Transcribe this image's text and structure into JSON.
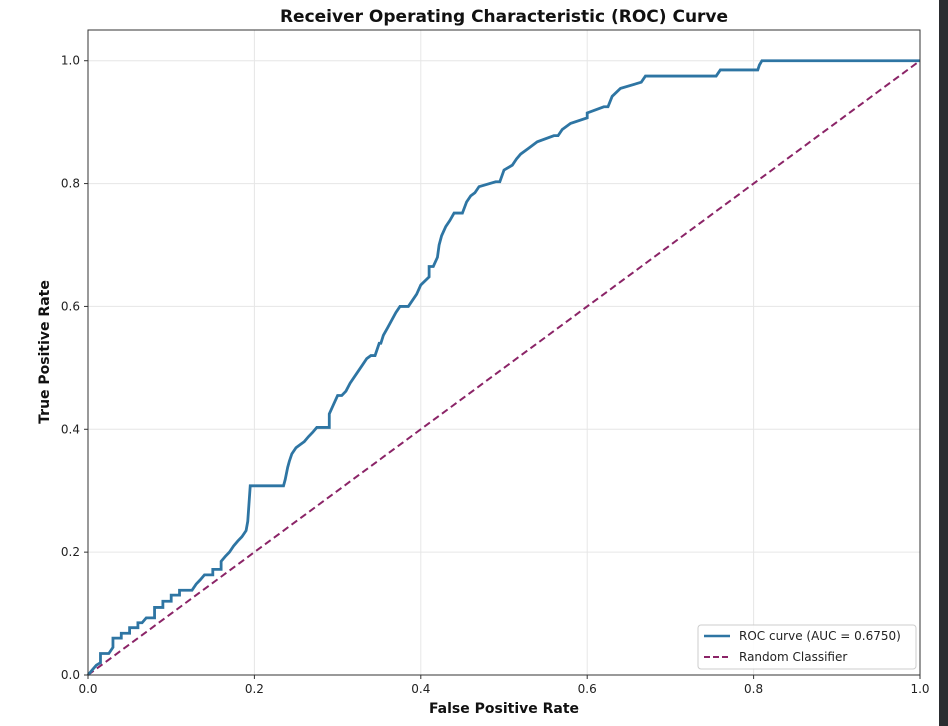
{
  "chart_data": {
    "type": "line",
    "title": "Receiver Operating Characteristic (ROC) Curve",
    "xlabel": "False Positive Rate",
    "ylabel": "True Positive Rate",
    "xlim": [
      0,
      1
    ],
    "ylim": [
      0,
      1.05
    ],
    "xticks": [
      0.0,
      0.2,
      0.4,
      0.6,
      0.8,
      1.0
    ],
    "yticks": [
      0.0,
      0.2,
      0.4,
      0.6,
      0.8,
      1.0
    ],
    "xtick_labels": [
      "0.0",
      "0.2",
      "0.4",
      "0.6",
      "0.8",
      "1.0"
    ],
    "ytick_labels": [
      "0.0",
      "0.2",
      "0.4",
      "0.6",
      "0.8",
      "1.0"
    ],
    "grid": true,
    "legend_position": "bottom-right",
    "series": [
      {
        "name": "ROC curve (AUC = 0.6750)",
        "color": "#2e75a3",
        "style": "solid",
        "x": [
          0,
          0.005,
          0.01,
          0.015,
          0.015,
          0.025,
          0.03,
          0.03,
          0.04,
          0.04,
          0.05,
          0.05,
          0.06,
          0.06,
          0.065,
          0.07,
          0.08,
          0.08,
          0.09,
          0.09,
          0.1,
          0.1,
          0.11,
          0.11,
          0.125,
          0.13,
          0.135,
          0.14,
          0.15,
          0.15,
          0.16,
          0.16,
          0.165,
          0.17,
          0.175,
          0.18,
          0.185,
          0.19,
          0.192,
          0.195,
          0.235,
          0.237,
          0.24,
          0.242,
          0.245,
          0.25,
          0.255,
          0.26,
          0.265,
          0.27,
          0.275,
          0.28,
          0.29,
          0.29,
          0.295,
          0.3,
          0.305,
          0.31,
          0.315,
          0.32,
          0.325,
          0.33,
          0.335,
          0.34,
          0.345,
          0.35,
          0.352,
          0.355,
          0.36,
          0.37,
          0.375,
          0.38,
          0.385,
          0.39,
          0.395,
          0.4,
          0.41,
          0.41,
          0.415,
          0.42,
          0.422,
          0.425,
          0.43,
          0.435,
          0.44,
          0.45,
          0.455,
          0.46,
          0.465,
          0.47,
          0.49,
          0.495,
          0.5,
          0.51,
          0.515,
          0.52,
          0.53,
          0.54,
          0.56,
          0.565,
          0.57,
          0.58,
          0.6,
          0.6,
          0.62,
          0.625,
          0.63,
          0.64,
          0.665,
          0.67,
          0.755,
          0.76,
          0.805,
          0.807,
          0.81,
          1.0
        ],
        "y": [
          0,
          0.008,
          0.016,
          0.02,
          0.035,
          0.035,
          0.045,
          0.06,
          0.06,
          0.068,
          0.068,
          0.077,
          0.077,
          0.085,
          0.085,
          0.093,
          0.093,
          0.11,
          0.11,
          0.12,
          0.12,
          0.13,
          0.13,
          0.138,
          0.138,
          0.148,
          0.155,
          0.163,
          0.163,
          0.172,
          0.172,
          0.185,
          0.193,
          0.2,
          0.21,
          0.218,
          0.225,
          0.235,
          0.25,
          0.308,
          0.308,
          0.318,
          0.338,
          0.348,
          0.36,
          0.37,
          0.375,
          0.38,
          0.388,
          0.395,
          0.403,
          0.403,
          0.403,
          0.425,
          0.44,
          0.455,
          0.455,
          0.462,
          0.475,
          0.485,
          0.495,
          0.505,
          0.515,
          0.52,
          0.52,
          0.54,
          0.54,
          0.553,
          0.565,
          0.59,
          0.6,
          0.6,
          0.6,
          0.61,
          0.62,
          0.635,
          0.648,
          0.665,
          0.665,
          0.68,
          0.7,
          0.715,
          0.73,
          0.74,
          0.752,
          0.752,
          0.77,
          0.78,
          0.785,
          0.795,
          0.803,
          0.803,
          0.822,
          0.83,
          0.84,
          0.848,
          0.858,
          0.868,
          0.878,
          0.878,
          0.888,
          0.898,
          0.907,
          0.915,
          0.925,
          0.925,
          0.942,
          0.955,
          0.965,
          0.975,
          0.975,
          0.985,
          0.985,
          0.993,
          1.0,
          1.0
        ]
      },
      {
        "name": "Random Classifier",
        "color": "#8b2467",
        "style": "dashed",
        "x": [
          0,
          1
        ],
        "y": [
          0,
          1
        ]
      }
    ]
  }
}
